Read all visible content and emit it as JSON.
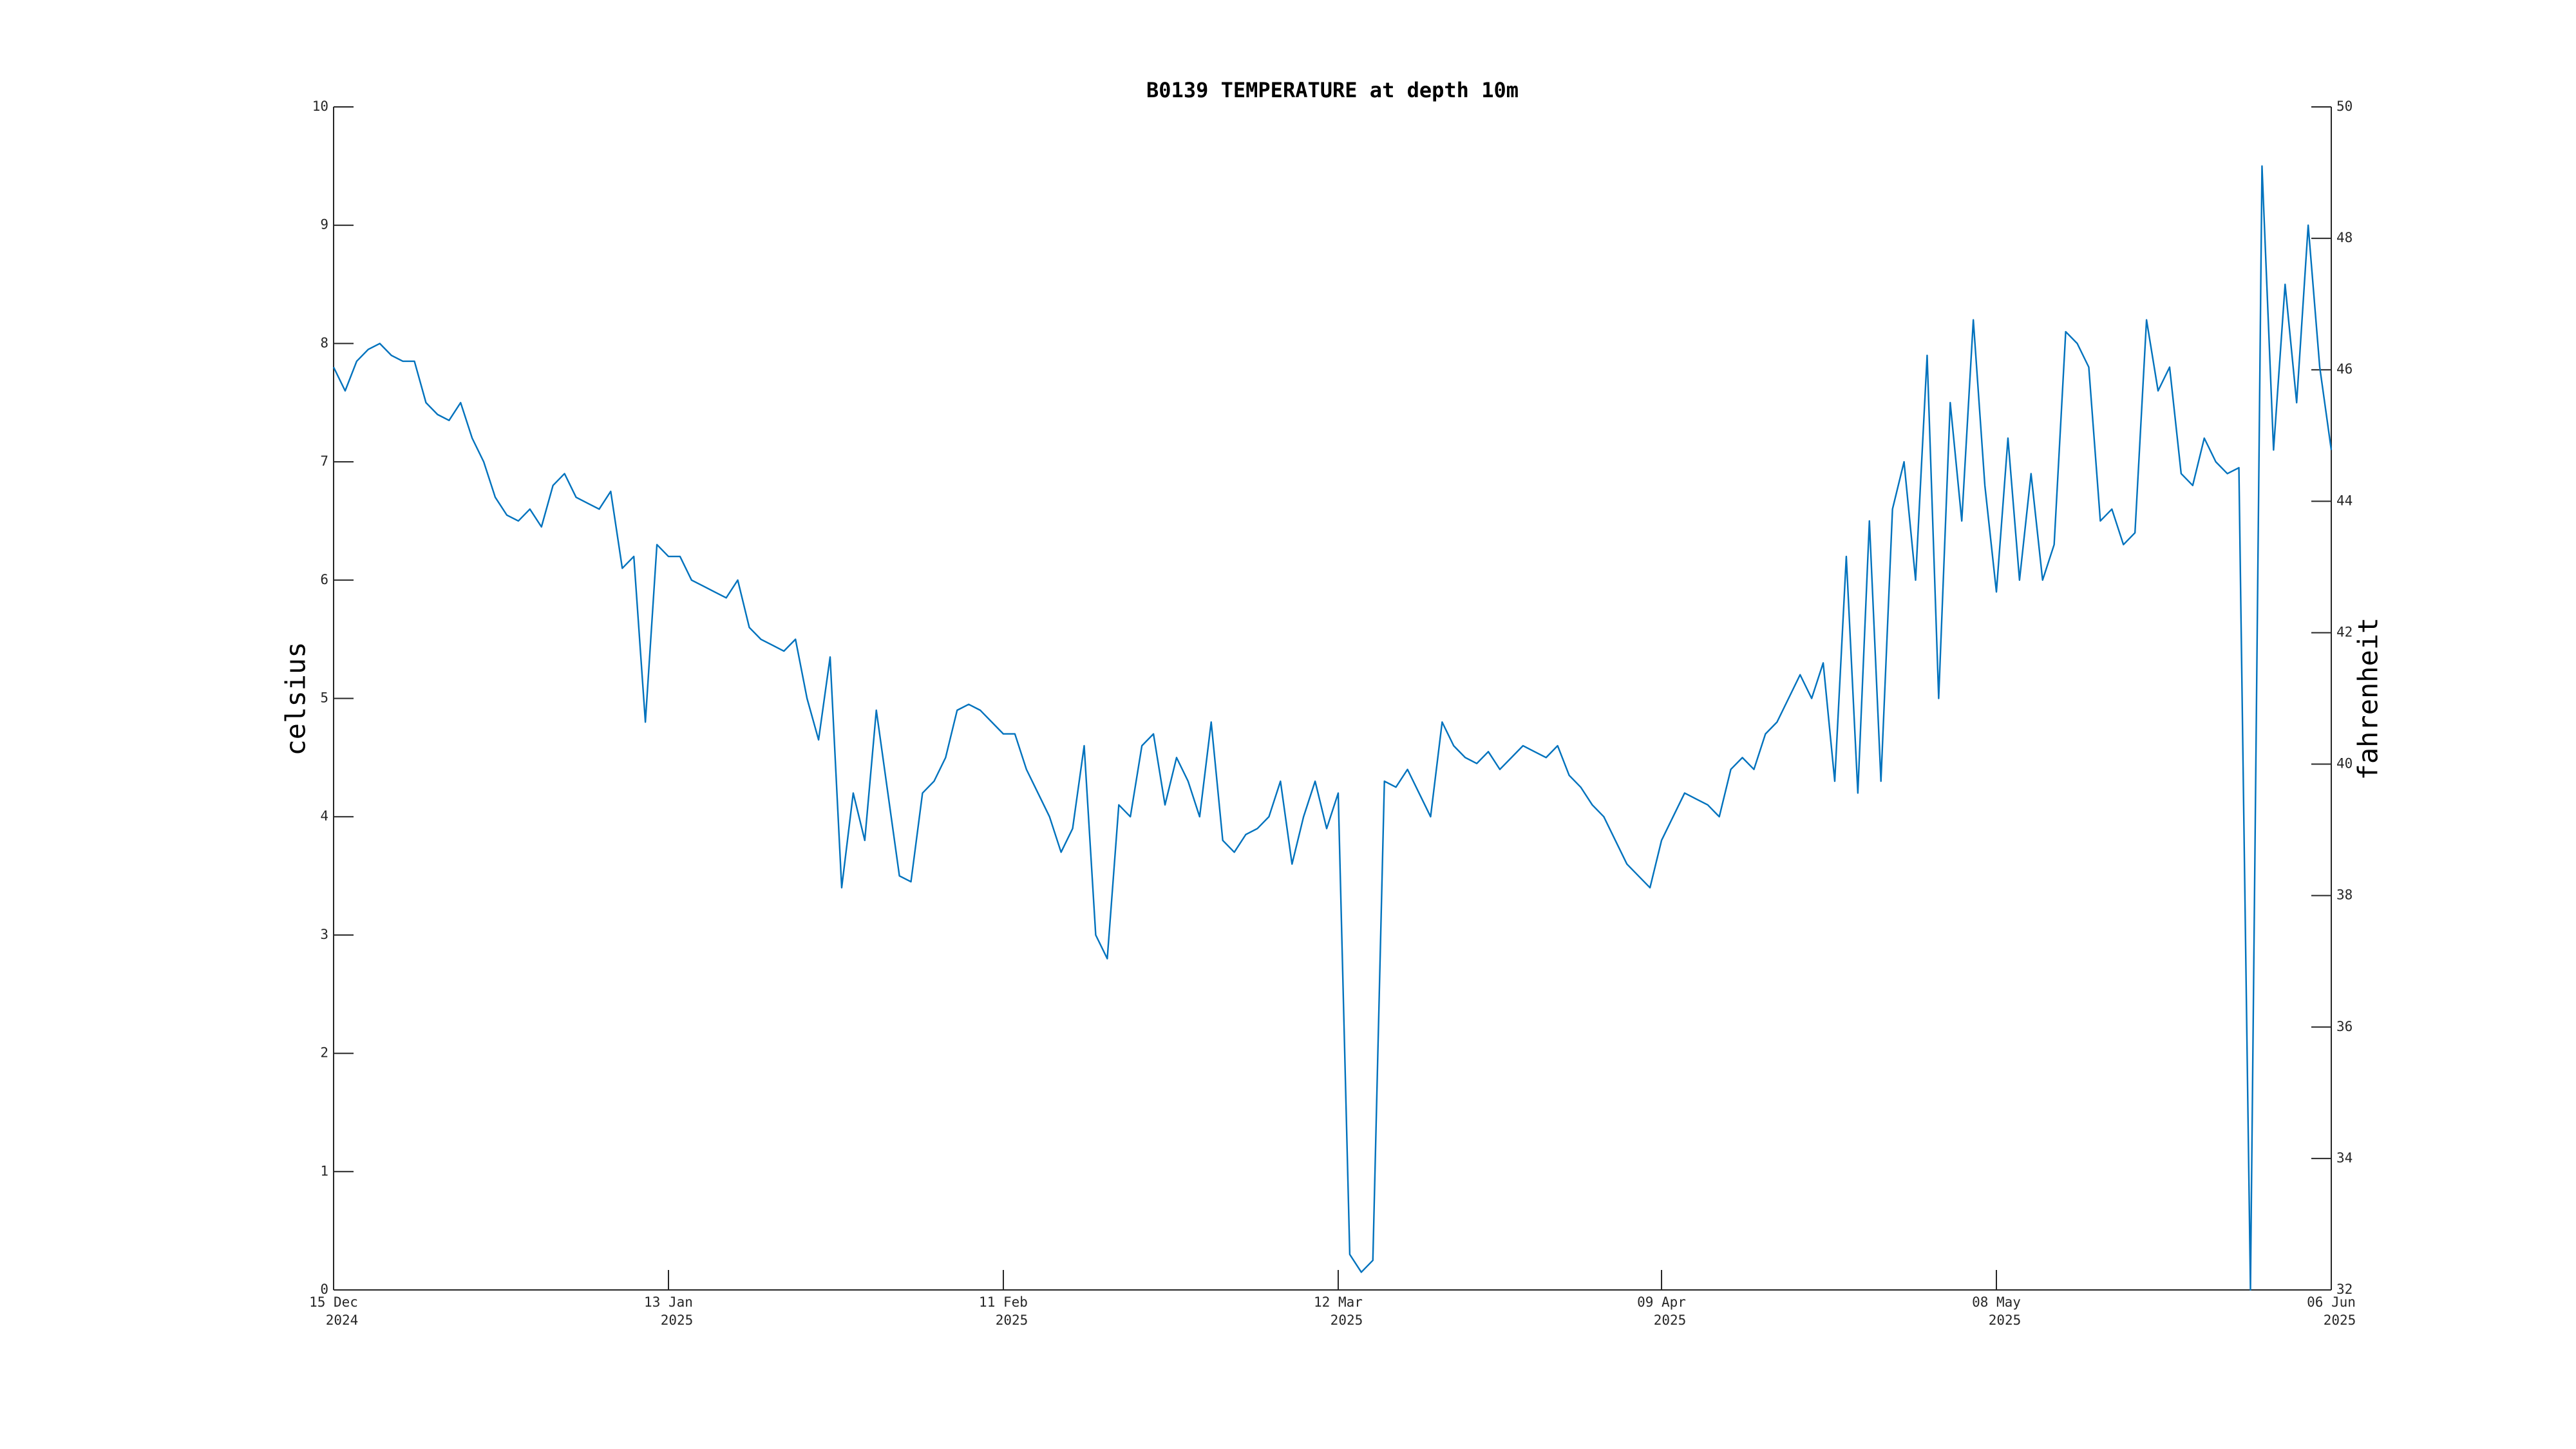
{
  "chart_data": {
    "type": "line",
    "title": "B0139 TEMPERATURE at depth 10m",
    "ylabel": "celsius",
    "y2label": "fahrenheit",
    "color": "#0072bd",
    "xlim": [
      "2024-12-15",
      "2025-06-06"
    ],
    "xticks": [
      {
        "value": "2024-12-15",
        "label": [
          "15 Dec",
          "2024"
        ]
      },
      {
        "value": "2025-01-13",
        "label": [
          "13 Jan",
          "2025"
        ]
      },
      {
        "value": "2025-02-11",
        "label": [
          "11 Feb",
          "2025"
        ]
      },
      {
        "value": "2025-03-12",
        "label": [
          "12 Mar",
          "2025"
        ]
      },
      {
        "value": "2025-04-09",
        "label": [
          "09 Apr",
          "2025"
        ]
      },
      {
        "value": "2025-05-08",
        "label": [
          "08 May",
          "2025"
        ]
      },
      {
        "value": "2025-06-06",
        "label": [
          "06 Jun",
          "2025"
        ]
      }
    ],
    "ylim": [
      0,
      10
    ],
    "yticks": [
      0,
      1,
      2,
      3,
      4,
      5,
      6,
      7,
      8,
      9,
      10
    ],
    "y2lim": [
      32,
      50
    ],
    "y2ticks": [
      32,
      34,
      36,
      38,
      40,
      42,
      44,
      46,
      48,
      50
    ],
    "x": [
      "2024-12-15",
      "2024-12-16",
      "2024-12-17",
      "2024-12-18",
      "2024-12-19",
      "2024-12-20",
      "2024-12-21",
      "2024-12-22",
      "2024-12-23",
      "2024-12-24",
      "2024-12-25",
      "2024-12-26",
      "2024-12-27",
      "2024-12-28",
      "2024-12-29",
      "2024-12-30",
      "2024-12-31",
      "2025-01-01",
      "2025-01-02",
      "2025-01-03",
      "2025-01-04",
      "2025-01-05",
      "2025-01-06",
      "2025-01-07",
      "2025-01-08",
      "2025-01-09",
      "2025-01-10",
      "2025-01-11",
      "2025-01-12",
      "2025-01-13",
      "2025-01-14",
      "2025-01-15",
      "2025-01-16",
      "2025-01-17",
      "2025-01-18",
      "2025-01-19",
      "2025-01-20",
      "2025-01-21",
      "2025-01-22",
      "2025-01-23",
      "2025-01-24",
      "2025-01-25",
      "2025-01-26",
      "2025-01-27",
      "2025-01-28",
      "2025-01-29",
      "2025-01-30",
      "2025-01-31",
      "2025-02-01",
      "2025-02-02",
      "2025-02-03",
      "2025-02-04",
      "2025-02-05",
      "2025-02-06",
      "2025-02-07",
      "2025-02-08",
      "2025-02-09",
      "2025-02-10",
      "2025-02-11",
      "2025-02-12",
      "2025-02-13",
      "2025-02-14",
      "2025-02-15",
      "2025-02-16",
      "2025-02-17",
      "2025-02-18",
      "2025-02-19",
      "2025-02-20",
      "2025-02-21",
      "2025-02-22",
      "2025-02-23",
      "2025-02-24",
      "2025-02-25",
      "2025-02-26",
      "2025-02-27",
      "2025-02-28",
      "2025-03-01",
      "2025-03-02",
      "2025-03-03",
      "2025-03-04",
      "2025-03-05",
      "2025-03-06",
      "2025-03-07",
      "2025-03-08",
      "2025-03-09",
      "2025-03-10",
      "2025-03-11",
      "2025-03-12",
      "2025-03-13",
      "2025-03-14",
      "2025-03-15",
      "2025-03-16",
      "2025-03-17",
      "2025-03-18",
      "2025-03-19",
      "2025-03-20",
      "2025-03-21",
      "2025-03-22",
      "2025-03-23",
      "2025-03-24",
      "2025-03-25",
      "2025-03-26",
      "2025-03-27",
      "2025-03-28",
      "2025-03-29",
      "2025-03-30",
      "2025-03-31",
      "2025-04-01",
      "2025-04-02",
      "2025-04-03",
      "2025-04-04",
      "2025-04-05",
      "2025-04-06",
      "2025-04-07",
      "2025-04-08",
      "2025-04-09",
      "2025-04-10",
      "2025-04-11",
      "2025-04-12",
      "2025-04-13",
      "2025-04-14",
      "2025-04-15",
      "2025-04-16",
      "2025-04-17",
      "2025-04-18",
      "2025-04-19",
      "2025-04-20",
      "2025-04-21",
      "2025-04-22",
      "2025-04-23",
      "2025-04-24",
      "2025-04-25",
      "2025-04-26",
      "2025-04-27",
      "2025-04-28",
      "2025-04-29",
      "2025-04-30",
      "2025-05-01",
      "2025-05-02",
      "2025-05-03",
      "2025-05-04",
      "2025-05-05",
      "2025-05-06",
      "2025-05-07",
      "2025-05-08",
      "2025-05-09",
      "2025-05-10",
      "2025-05-11",
      "2025-05-12",
      "2025-05-13",
      "2025-05-14",
      "2025-05-15",
      "2025-05-16",
      "2025-05-17",
      "2025-05-18",
      "2025-05-19",
      "2025-05-20",
      "2025-05-21",
      "2025-05-22",
      "2025-05-23",
      "2025-05-24",
      "2025-05-25",
      "2025-05-26",
      "2025-05-27",
      "2025-05-28",
      "2025-05-29",
      "2025-05-30",
      "2025-05-31",
      "2025-06-01",
      "2025-06-02",
      "2025-06-03",
      "2025-06-04",
      "2025-06-05",
      "2025-06-06"
    ],
    "values": [
      7.8,
      7.6,
      7.85,
      7.95,
      8.0,
      7.9,
      7.85,
      7.85,
      7.5,
      7.4,
      7.35,
      7.5,
      7.2,
      7.0,
      6.7,
      6.55,
      6.5,
      6.6,
      6.45,
      6.8,
      6.9,
      6.7,
      6.65,
      6.6,
      6.75,
      6.1,
      6.2,
      4.8,
      6.3,
      6.2,
      6.2,
      6.0,
      5.95,
      5.9,
      5.85,
      6.0,
      5.6,
      5.5,
      5.45,
      5.4,
      5.5,
      5.0,
      4.65,
      5.35,
      3.4,
      4.2,
      3.8,
      4.9,
      4.2,
      3.5,
      3.45,
      4.2,
      4.3,
      4.5,
      4.9,
      4.95,
      4.9,
      4.8,
      4.7,
      4.7,
      4.4,
      4.2,
      4.0,
      3.7,
      3.9,
      4.6,
      3.0,
      2.8,
      4.1,
      4.0,
      4.6,
      4.7,
      4.1,
      4.5,
      4.3,
      4.0,
      4.8,
      3.8,
      3.7,
      3.85,
      3.9,
      4.0,
      4.3,
      3.6,
      4.0,
      4.3,
      3.9,
      4.2,
      0.3,
      0.15,
      0.25,
      4.3,
      4.25,
      4.4,
      4.2,
      4.0,
      4.8,
      4.6,
      4.5,
      4.45,
      4.55,
      4.4,
      4.5,
      4.6,
      4.55,
      4.5,
      4.6,
      4.35,
      4.25,
      4.1,
      4.0,
      3.8,
      3.6,
      3.5,
      3.4,
      3.8,
      4.0,
      4.2,
      4.15,
      4.1,
      4.0,
      4.4,
      4.5,
      4.4,
      4.7,
      4.8,
      5.0,
      5.2,
      5.0,
      5.3,
      4.3,
      6.2,
      4.2,
      6.5,
      4.3,
      6.6,
      7.0,
      6.0,
      7.9,
      5.0,
      7.5,
      6.5,
      8.2,
      6.8,
      5.9,
      7.2,
      6.0,
      6.9,
      6.0,
      6.3,
      8.1,
      8.0,
      7.8,
      6.5,
      6.6,
      6.3,
      6.4,
      8.2,
      7.6,
      7.8,
      6.9,
      6.8,
      7.2,
      7.0,
      6.9,
      6.95,
      0.0,
      9.5,
      7.1,
      8.5,
      7.5,
      9.0,
      7.8,
      7.1
    ]
  }
}
